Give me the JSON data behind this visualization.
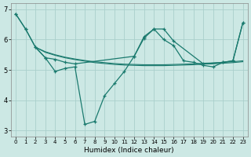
{
  "xlabel": "Humidex (Indice chaleur)",
  "xlim": [
    -0.5,
    23.5
  ],
  "ylim": [
    2.8,
    7.2
  ],
  "yticks": [
    3,
    4,
    5,
    6,
    7
  ],
  "xticks": [
    0,
    1,
    2,
    3,
    4,
    5,
    6,
    7,
    8,
    9,
    10,
    11,
    12,
    13,
    14,
    15,
    16,
    17,
    18,
    19,
    20,
    21,
    22,
    23
  ],
  "bg_color": "#cce8e4",
  "line_color": "#1a7a6e",
  "grid_color": "#aacfcc",
  "line1": {
    "x": [
      0,
      1,
      2,
      3,
      4,
      5,
      6,
      7,
      8,
      9,
      10,
      11,
      12,
      13,
      14,
      15,
      16,
      17,
      18,
      19,
      20,
      21,
      22,
      23
    ],
    "y": [
      6.85,
      6.35,
      5.75,
      5.4,
      4.95,
      5.05,
      5.1,
      3.2,
      3.3,
      4.15,
      4.55,
      4.95,
      5.45,
      6.05,
      6.35,
      6.0,
      5.8,
      5.3,
      5.25,
      5.15,
      5.1,
      5.25,
      5.3,
      6.55
    ]
  },
  "line2": {
    "x": [
      0,
      1,
      2,
      3,
      4,
      5,
      6,
      12,
      13,
      14,
      15,
      16,
      19,
      21,
      22,
      23
    ],
    "y": [
      6.85,
      6.35,
      5.75,
      5.4,
      5.35,
      5.25,
      5.2,
      5.45,
      6.1,
      6.35,
      6.35,
      5.95,
      5.2,
      5.25,
      5.3,
      6.55
    ]
  },
  "line3": {
    "x": [
      2,
      3,
      4,
      5,
      6,
      7,
      8,
      9,
      10,
      11,
      12,
      13,
      14,
      15,
      16,
      17,
      18,
      19,
      20,
      21,
      22,
      23
    ],
    "y": [
      5.75,
      5.6,
      5.5,
      5.42,
      5.36,
      5.31,
      5.27,
      5.24,
      5.21,
      5.19,
      5.18,
      5.17,
      5.17,
      5.17,
      5.18,
      5.19,
      5.2,
      5.22,
      5.23,
      5.25,
      5.27,
      5.3
    ]
  },
  "line4": {
    "x": [
      2,
      3,
      4,
      5,
      6,
      7,
      8,
      9,
      10,
      11,
      12,
      13,
      14,
      15,
      16,
      17,
      18,
      19,
      20,
      21,
      22,
      23
    ],
    "y": [
      5.75,
      5.58,
      5.48,
      5.4,
      5.34,
      5.29,
      5.24,
      5.21,
      5.18,
      5.16,
      5.15,
      5.14,
      5.14,
      5.14,
      5.15,
      5.16,
      5.17,
      5.19,
      5.2,
      5.22,
      5.24,
      5.27
    ]
  }
}
